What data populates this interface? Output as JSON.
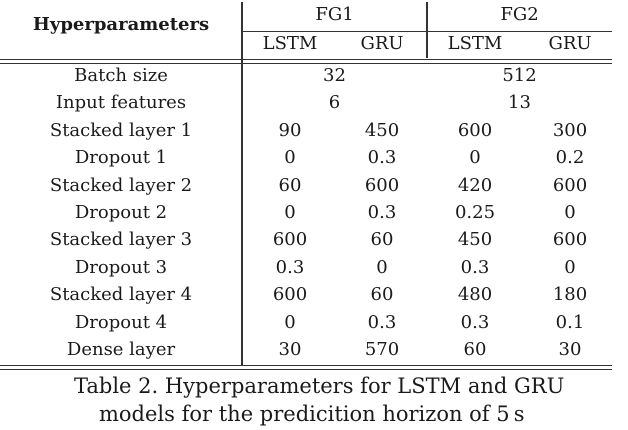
{
  "table": {
    "row_header": "Hyperparameters",
    "groups": [
      {
        "label": "FG1",
        "models": [
          "LSTM",
          "GRU"
        ]
      },
      {
        "label": "FG2",
        "models": [
          "LSTM",
          "GRU"
        ]
      }
    ],
    "rows": [
      {
        "label": "Batch size",
        "merged": [
          "32",
          "512"
        ]
      },
      {
        "label": "Input features",
        "merged": [
          "6",
          "13"
        ]
      },
      {
        "label": "Stacked layer 1",
        "values": [
          "90",
          "450",
          "600",
          "300"
        ]
      },
      {
        "label": "Dropout 1",
        "values": [
          "0",
          "0.3",
          "0",
          "0.2"
        ]
      },
      {
        "label": "Stacked layer 2",
        "values": [
          "60",
          "600",
          "420",
          "600"
        ]
      },
      {
        "label": "Dropout 2",
        "values": [
          "0",
          "0.3",
          "0.25",
          "0"
        ]
      },
      {
        "label": "Stacked layer 3",
        "values": [
          "600",
          "60",
          "450",
          "600"
        ]
      },
      {
        "label": "Dropout 3",
        "values": [
          "0.3",
          "0",
          "0.3",
          "0"
        ]
      },
      {
        "label": "Stacked layer 4",
        "values": [
          "600",
          "60",
          "480",
          "180"
        ]
      },
      {
        "label": "Dropout 4",
        "values": [
          "0",
          "0.3",
          "0.3",
          "0.1"
        ]
      },
      {
        "label": "Dense layer",
        "values": [
          "30",
          "570",
          "60",
          "30"
        ]
      }
    ]
  },
  "caption": {
    "line1": "Table 2. Hyperparameters for LSTM and GRU",
    "line2": "models for the predicition horizon of 5 s"
  }
}
